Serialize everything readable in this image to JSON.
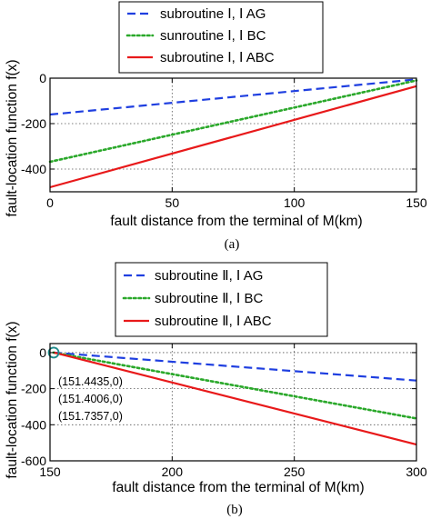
{
  "chart_data": [
    {
      "type": "line",
      "panel_label": "(a)",
      "xlabel": "fault distance from the terminal of M(km)",
      "ylabel": "fault-location function f(x)",
      "xlim": [
        0,
        150
      ],
      "ylim": [
        -500,
        0
      ],
      "xticks": [
        "0",
        "50",
        "100",
        "150"
      ],
      "yticks": [
        "0",
        "-200",
        "-400"
      ],
      "ytick_values": [
        0,
        -200,
        -400
      ],
      "xtick_values": [
        0,
        50,
        100,
        150
      ],
      "grid": true,
      "legend_position": "top-center, above axes",
      "series": [
        {
          "name": "subroutine Ⅰ, Ⅰ AG",
          "color": "#1f3fe0",
          "style": "dashed",
          "x": [
            0,
            150
          ],
          "y": [
            -160,
            -5
          ]
        },
        {
          "name": "sunroutine Ⅰ, Ⅰ BC",
          "color": "#2aa82a",
          "style": "dotted",
          "x": [
            0,
            150
          ],
          "y": [
            -368,
            -10
          ]
        },
        {
          "name": "subroutine Ⅰ, Ⅰ ABC",
          "color": "#e8191a",
          "style": "solid",
          "x": [
            0,
            150
          ],
          "y": [
            -480,
            -35
          ]
        }
      ]
    },
    {
      "type": "line",
      "panel_label": "(b)",
      "xlabel": "fault distance from the terminal of M(km)",
      "ylabel": "fault-location function f(x)",
      "xlim": [
        150,
        300
      ],
      "ylim": [
        -600,
        50
      ],
      "xticks": [
        "150",
        "200",
        "250",
        "300"
      ],
      "yticks": [
        "0",
        "-200",
        "-400",
        "-600"
      ],
      "ytick_values": [
        0,
        -200,
        -400,
        -600
      ],
      "xtick_values": [
        150,
        200,
        250,
        300
      ],
      "grid": true,
      "legend_position": "top-center, above axes",
      "annotations": [
        "(151.4435,0)",
        "(151.4006,0)",
        "(151.7357,0)"
      ],
      "marker": {
        "x": 151.5,
        "y": 0,
        "shape": "circle"
      },
      "series": [
        {
          "name": "subroutine Ⅱ, Ⅰ AG",
          "color": "#1f3fe0",
          "style": "dashed",
          "x": [
            151.4435,
            300
          ],
          "y": [
            0,
            -155
          ]
        },
        {
          "name": "subroutine Ⅱ, Ⅰ BC",
          "color": "#2aa82a",
          "style": "dotted",
          "x": [
            151.4006,
            300
          ],
          "y": [
            0,
            -365
          ]
        },
        {
          "name": "subroutine Ⅱ, Ⅰ ABC",
          "color": "#e8191a",
          "style": "solid",
          "x": [
            151.7357,
            300
          ],
          "y": [
            0,
            -510
          ]
        }
      ]
    }
  ]
}
